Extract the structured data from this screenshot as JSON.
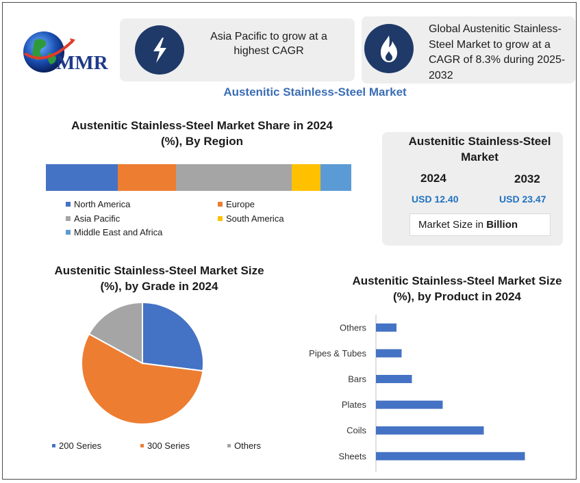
{
  "header": {
    "logo_text": "MMR",
    "card1_text": "Asia Pacific to grow at a highest CAGR",
    "card1_icon": "lightning-icon",
    "card2_text": "Global Austenitic Stainless-Steel Market to grow at a CAGR of 8.3% during 2025-2032",
    "card2_icon": "flame-icon",
    "main_title": "Austenitic Stainless-Steel Market"
  },
  "colors": {
    "navy": "#1f3a68",
    "title_blue": "#3a6db5",
    "value_blue": "#1f70c1",
    "blue": "#4472c4",
    "orange": "#ed7d31",
    "gray": "#a5a5a5",
    "yellow": "#ffc000",
    "light_blue": "#5b9bd5"
  },
  "market_size": {
    "title": "Austenitic Stainless-Steel Market",
    "year1": "2024",
    "year2": "2032",
    "value1": "USD 12.40",
    "value2": "USD 23.47",
    "footer_prefix": "Market Size in ",
    "footer_bold": "Billion"
  },
  "chart_data": [
    {
      "type": "bar",
      "orientation": "horizontal-stacked",
      "title": "Austenitic Stainless-Steel Market Share in 2024 (%), By Region",
      "series": [
        {
          "name": "North America",
          "value": 23.5,
          "color": "#4472c4"
        },
        {
          "name": "Europe",
          "value": 19,
          "color": "#ed7d31"
        },
        {
          "name": "Asia Pacific",
          "value": 38,
          "color": "#a5a5a5"
        },
        {
          "name": "South America",
          "value": 9.5,
          "color": "#ffc000"
        },
        {
          "name": "Middle East and Africa",
          "value": 10,
          "color": "#5b9bd5"
        }
      ],
      "legend": "bottom"
    },
    {
      "type": "pie",
      "title": "Austenitic Stainless-Steel Market Size (%), by Grade in 2024",
      "slices": [
        {
          "name": "200 Series",
          "value": 27,
          "color": "#4472c4"
        },
        {
          "name": "300 Series",
          "value": 56,
          "color": "#ed7d31"
        },
        {
          "name": "Others",
          "value": 17,
          "color": "#a5a5a5"
        }
      ],
      "legend": "bottom"
    },
    {
      "type": "bar",
      "orientation": "horizontal",
      "title": "Austenitic Stainless-Steel Market Size (%), by Product in 2024",
      "categories": [
        "Others",
        "Pipes & Tubes",
        "Bars",
        "Plates",
        "Coils",
        "Sheets"
      ],
      "values": [
        4,
        5,
        7,
        13,
        21,
        29
      ],
      "xlim": [
        0,
        32
      ],
      "color": "#4472c4"
    }
  ]
}
